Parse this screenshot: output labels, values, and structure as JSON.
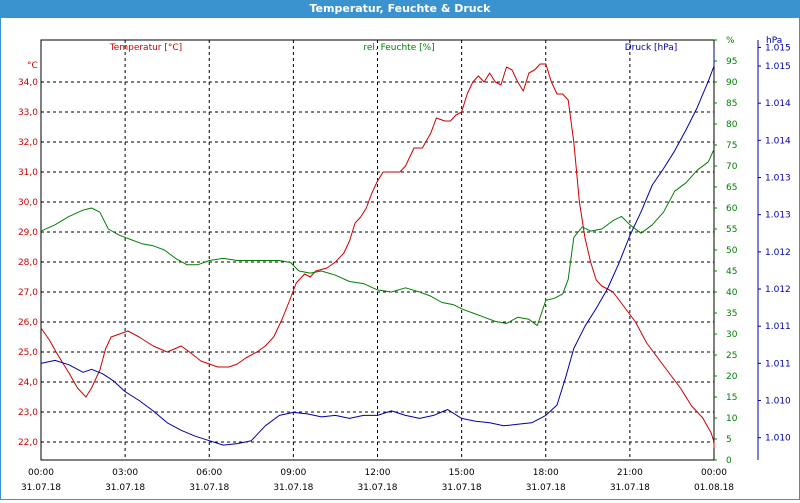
{
  "window": {
    "title": "Temperatur, Feuchte & Druck"
  },
  "colors": {
    "temperature": "#cc0000",
    "humidity": "#008000",
    "pressure": "#0000aa",
    "grid": "#000000",
    "title_bar": "#3a93cf"
  },
  "chart_data": {
    "type": "line",
    "title": "Temperatur, Feuchte & Druck",
    "grid": true,
    "x": {
      "min": 0,
      "max": 24,
      "unit": "hours since 31.07.18 00:00",
      "ticks": [
        {
          "value": 0,
          "time": "00:00",
          "date": "31.07.18"
        },
        {
          "value": 3,
          "time": "03:00",
          "date": "31.07.18"
        },
        {
          "value": 6,
          "time": "06:00",
          "date": "31.07.18"
        },
        {
          "value": 9,
          "time": "09:00",
          "date": "31.07.18"
        },
        {
          "value": 12,
          "time": "12:00",
          "date": "31.07.18"
        },
        {
          "value": 15,
          "time": "15:00",
          "date": "31.07.18"
        },
        {
          "value": 18,
          "time": "18:00",
          "date": "31.07.18"
        },
        {
          "value": 21,
          "time": "21:00",
          "date": "31.07.18"
        },
        {
          "value": 24,
          "time": "00:00",
          "date": "01.08.18"
        }
      ]
    },
    "axes": {
      "temperature": {
        "label": "Temperatur [°C]",
        "unit": "°C",
        "ylim": [
          21.4,
          35.4
        ],
        "ticks": [
          {
            "value": 22.0,
            "label": "22,0"
          },
          {
            "value": 23.0,
            "label": "23,0"
          },
          {
            "value": 24.0,
            "label": "24,0"
          },
          {
            "value": 25.0,
            "label": "25,0"
          },
          {
            "value": 26.0,
            "label": "26,0"
          },
          {
            "value": 27.0,
            "label": "27,0"
          },
          {
            "value": 28.0,
            "label": "28,0"
          },
          {
            "value": 29.0,
            "label": "29,0"
          },
          {
            "value": 30.0,
            "label": "30,0"
          },
          {
            "value": 31.0,
            "label": "31,0"
          },
          {
            "value": 32.0,
            "label": "32,0"
          },
          {
            "value": 33.0,
            "label": "33,0"
          },
          {
            "value": 34.0,
            "label": "34,0"
          }
        ]
      },
      "humidity": {
        "label": "rel. Feuchte [%]",
        "unit": "%",
        "ylim": [
          0,
          100
        ],
        "ticks": [
          {
            "value": 0,
            "label": "0"
          },
          {
            "value": 5,
            "label": "5"
          },
          {
            "value": 10,
            "label": "10"
          },
          {
            "value": 15,
            "label": "15"
          },
          {
            "value": 20,
            "label": "20"
          },
          {
            "value": 25,
            "label": "25"
          },
          {
            "value": 30,
            "label": "30"
          },
          {
            "value": 35,
            "label": "35"
          },
          {
            "value": 40,
            "label": "40"
          },
          {
            "value": 45,
            "label": "45"
          },
          {
            "value": 50,
            "label": "50"
          },
          {
            "value": 55,
            "label": "55"
          },
          {
            "value": 60,
            "label": "60"
          },
          {
            "value": 65,
            "label": "65"
          },
          {
            "value": 70,
            "label": "70"
          },
          {
            "value": 75,
            "label": "75"
          },
          {
            "value": 80,
            "label": "80"
          },
          {
            "value": 85,
            "label": "85"
          },
          {
            "value": 90,
            "label": "90"
          },
          {
            "value": 95,
            "label": "95"
          },
          {
            "value": 100,
            "label": "%"
          }
        ]
      },
      "pressure": {
        "label": "Druck [hPa]",
        "unit": "hPa",
        "ylim": [
          1009.7,
          1015.35
        ],
        "ticks": [
          {
            "value": 1010.0,
            "label": "1.010"
          },
          {
            "value": 1010.5,
            "label": "1.010"
          },
          {
            "value": 1011.0,
            "label": "1.011"
          },
          {
            "value": 1011.5,
            "label": "1.011"
          },
          {
            "value": 1012.0,
            "label": "1.012"
          },
          {
            "value": 1012.5,
            "label": "1.012"
          },
          {
            "value": 1013.0,
            "label": "1.013"
          },
          {
            "value": 1013.5,
            "label": "1.013"
          },
          {
            "value": 1014.0,
            "label": "1.014"
          },
          {
            "value": 1014.5,
            "label": "1.014"
          },
          {
            "value": 1015.0,
            "label": "1.015"
          },
          {
            "value": 1015.25,
            "label": "1.015"
          },
          {
            "value": 1015.35,
            "label": "hPa"
          }
        ]
      }
    },
    "series": [
      {
        "name": "Temperatur [°C]",
        "axis": "temperature",
        "points": [
          [
            0,
            25.8
          ],
          [
            0.3,
            25.4
          ],
          [
            0.6,
            24.9
          ],
          [
            1.0,
            24.3
          ],
          [
            1.3,
            23.8
          ],
          [
            1.6,
            23.5
          ],
          [
            1.8,
            23.8
          ],
          [
            2.1,
            24.4
          ],
          [
            2.3,
            25.1
          ],
          [
            2.5,
            25.5
          ],
          [
            2.8,
            25.6
          ],
          [
            3.1,
            25.7
          ],
          [
            3.5,
            25.5
          ],
          [
            4.0,
            25.2
          ],
          [
            4.5,
            25.0
          ],
          [
            5.0,
            25.2
          ],
          [
            5.3,
            25.0
          ],
          [
            5.7,
            24.7
          ],
          [
            6.0,
            24.6
          ],
          [
            6.3,
            24.5
          ],
          [
            6.7,
            24.5
          ],
          [
            7.0,
            24.6
          ],
          [
            7.3,
            24.8
          ],
          [
            7.7,
            25.0
          ],
          [
            8.0,
            25.2
          ],
          [
            8.3,
            25.5
          ],
          [
            8.6,
            26.1
          ],
          [
            8.9,
            26.8
          ],
          [
            9.1,
            27.3
          ],
          [
            9.4,
            27.6
          ],
          [
            9.6,
            27.5
          ],
          [
            9.8,
            27.7
          ],
          [
            10.2,
            27.8
          ],
          [
            10.5,
            28.0
          ],
          [
            10.8,
            28.3
          ],
          [
            11.0,
            28.7
          ],
          [
            11.2,
            29.3
          ],
          [
            11.4,
            29.5
          ],
          [
            11.6,
            29.8
          ],
          [
            11.8,
            30.3
          ],
          [
            12.0,
            30.7
          ],
          [
            12.2,
            31.0
          ],
          [
            12.5,
            31.0
          ],
          [
            12.8,
            31.0
          ],
          [
            13.0,
            31.2
          ],
          [
            13.3,
            31.8
          ],
          [
            13.6,
            31.8
          ],
          [
            13.9,
            32.3
          ],
          [
            14.1,
            32.8
          ],
          [
            14.4,
            32.7
          ],
          [
            14.6,
            32.7
          ],
          [
            14.8,
            32.9
          ],
          [
            15.0,
            33.0
          ],
          [
            15.2,
            33.6
          ],
          [
            15.4,
            34.0
          ],
          [
            15.6,
            34.2
          ],
          [
            15.8,
            34.0
          ],
          [
            16.0,
            34.3
          ],
          [
            16.2,
            34.0
          ],
          [
            16.4,
            33.9
          ],
          [
            16.6,
            34.5
          ],
          [
            16.8,
            34.4
          ],
          [
            17.0,
            34.0
          ],
          [
            17.2,
            33.7
          ],
          [
            17.4,
            34.3
          ],
          [
            17.6,
            34.4
          ],
          [
            17.8,
            34.6
          ],
          [
            18.0,
            34.6
          ],
          [
            18.2,
            34.0
          ],
          [
            18.4,
            33.6
          ],
          [
            18.6,
            33.6
          ],
          [
            18.8,
            33.4
          ],
          [
            19.0,
            32.0
          ],
          [
            19.2,
            30.0
          ],
          [
            19.4,
            28.8
          ],
          [
            19.6,
            28.0
          ],
          [
            19.8,
            27.4
          ],
          [
            20.0,
            27.2
          ],
          [
            20.4,
            27.0
          ],
          [
            20.8,
            26.5
          ],
          [
            21.2,
            26.0
          ],
          [
            21.6,
            25.3
          ],
          [
            22.0,
            24.8
          ],
          [
            22.4,
            24.3
          ],
          [
            22.8,
            23.8
          ],
          [
            23.2,
            23.2
          ],
          [
            23.6,
            22.8
          ],
          [
            23.9,
            22.3
          ],
          [
            24.1,
            22.0
          ],
          [
            24.3,
            21.8
          ]
        ]
      },
      {
        "name": "rel. Feuchte [%]",
        "axis": "humidity",
        "points": [
          [
            0,
            54.5
          ],
          [
            0.5,
            56
          ],
          [
            1.0,
            58
          ],
          [
            1.5,
            59.5
          ],
          [
            1.8,
            60
          ],
          [
            2.1,
            59
          ],
          [
            2.4,
            55
          ],
          [
            2.8,
            53.5
          ],
          [
            3.2,
            52.5
          ],
          [
            3.6,
            51.5
          ],
          [
            4.0,
            51
          ],
          [
            4.4,
            50
          ],
          [
            4.8,
            48
          ],
          [
            5.2,
            46.5
          ],
          [
            5.6,
            46.5
          ],
          [
            6.0,
            47.5
          ],
          [
            6.5,
            48
          ],
          [
            7.0,
            47.5
          ],
          [
            7.5,
            47.5
          ],
          [
            8.0,
            47.5
          ],
          [
            8.5,
            47.5
          ],
          [
            8.9,
            47
          ],
          [
            9.2,
            45
          ],
          [
            9.6,
            44.5
          ],
          [
            10.0,
            45
          ],
          [
            10.5,
            44
          ],
          [
            11.0,
            42.5
          ],
          [
            11.5,
            42
          ],
          [
            12.0,
            40.5
          ],
          [
            12.5,
            40
          ],
          [
            13.0,
            41
          ],
          [
            13.5,
            40
          ],
          [
            13.9,
            39
          ],
          [
            14.3,
            37.5
          ],
          [
            14.7,
            37
          ],
          [
            15.0,
            36
          ],
          [
            15.4,
            35
          ],
          [
            15.8,
            34
          ],
          [
            16.2,
            33
          ],
          [
            16.6,
            32.5
          ],
          [
            17.0,
            34
          ],
          [
            17.4,
            33.5
          ],
          [
            17.7,
            32
          ],
          [
            18.0,
            38
          ],
          [
            18.3,
            38.5
          ],
          [
            18.6,
            39.5
          ],
          [
            18.8,
            43
          ],
          [
            19.0,
            53
          ],
          [
            19.3,
            55.5
          ],
          [
            19.6,
            54.5
          ],
          [
            20.0,
            55
          ],
          [
            20.4,
            57
          ],
          [
            20.7,
            58
          ],
          [
            21.0,
            56
          ],
          [
            21.4,
            54
          ],
          [
            21.8,
            56
          ],
          [
            22.2,
            59
          ],
          [
            22.6,
            64
          ],
          [
            23.0,
            66
          ],
          [
            23.4,
            69
          ],
          [
            23.8,
            71
          ],
          [
            24.1,
            74
          ]
        ]
      },
      {
        "name": "Druck [hPa]",
        "axis": "pressure",
        "points": [
          [
            0,
            1011.0
          ],
          [
            0.5,
            1011.04
          ],
          [
            1.0,
            1010.98
          ],
          [
            1.5,
            1010.88
          ],
          [
            1.8,
            1010.92
          ],
          [
            2.2,
            1010.86
          ],
          [
            2.6,
            1010.76
          ],
          [
            3.0,
            1010.62
          ],
          [
            3.5,
            1010.5
          ],
          [
            4.0,
            1010.36
          ],
          [
            4.5,
            1010.2
          ],
          [
            5.0,
            1010.1
          ],
          [
            5.5,
            1010.02
          ],
          [
            6.0,
            1009.96
          ],
          [
            6.5,
            1009.9
          ],
          [
            7.0,
            1009.92
          ],
          [
            7.5,
            1009.96
          ],
          [
            8.0,
            1010.16
          ],
          [
            8.5,
            1010.3
          ],
          [
            9.0,
            1010.34
          ],
          [
            9.5,
            1010.32
          ],
          [
            10.0,
            1010.28
          ],
          [
            10.5,
            1010.3
          ],
          [
            11.0,
            1010.26
          ],
          [
            11.5,
            1010.3
          ],
          [
            12.0,
            1010.3
          ],
          [
            12.5,
            1010.36
          ],
          [
            13.0,
            1010.3
          ],
          [
            13.5,
            1010.26
          ],
          [
            14.0,
            1010.3
          ],
          [
            14.5,
            1010.38
          ],
          [
            15.0,
            1010.26
          ],
          [
            15.5,
            1010.22
          ],
          [
            16.0,
            1010.2
          ],
          [
            16.5,
            1010.16
          ],
          [
            17.0,
            1010.18
          ],
          [
            17.5,
            1010.2
          ],
          [
            18.0,
            1010.3
          ],
          [
            18.4,
            1010.44
          ],
          [
            18.7,
            1010.8
          ],
          [
            19.0,
            1011.2
          ],
          [
            19.4,
            1011.5
          ],
          [
            19.8,
            1011.74
          ],
          [
            20.2,
            1012.0
          ],
          [
            20.6,
            1012.34
          ],
          [
            21.0,
            1012.72
          ],
          [
            21.4,
            1013.04
          ],
          [
            21.8,
            1013.4
          ],
          [
            22.2,
            1013.62
          ],
          [
            22.6,
            1013.86
          ],
          [
            23.0,
            1014.14
          ],
          [
            23.4,
            1014.44
          ],
          [
            23.8,
            1014.8
          ],
          [
            24.0,
            1015.0
          ],
          [
            24.2,
            1015.24
          ]
        ]
      }
    ]
  }
}
